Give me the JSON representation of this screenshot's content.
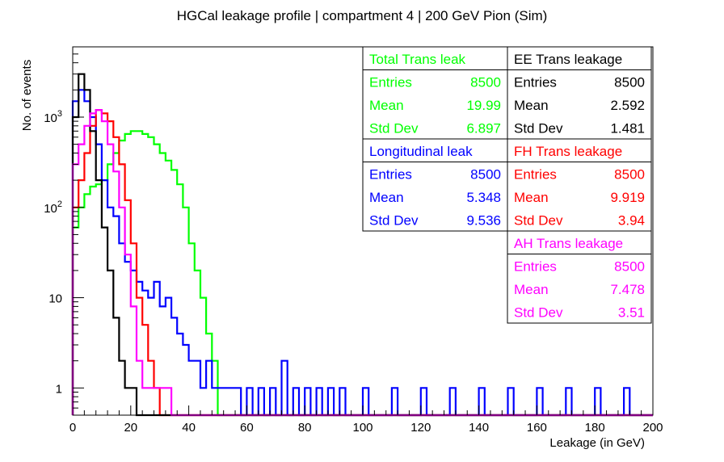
{
  "chart_data": {
    "type": "histogram",
    "title": "HGCal leakage profile | compartment 4 | 200 GeV Pion (Sim)",
    "xlabel": "Leakage (in GeV)",
    "ylabel": "No. of events",
    "xlim": [
      0,
      200
    ],
    "ylim": [
      0.5,
      6000
    ],
    "yscale": "log",
    "bin_width": 2,
    "x_ticks": [
      "0",
      "20",
      "40",
      "60",
      "80",
      "100",
      "120",
      "140",
      "160",
      "180",
      "200"
    ],
    "y_ticks": [
      {
        "value": 1,
        "label": "1"
      },
      {
        "value": 10,
        "label": "10"
      },
      {
        "value": 100,
        "label": "10",
        "exp": "2"
      },
      {
        "value": 1000,
        "label": "10",
        "exp": "3"
      }
    ],
    "series": [
      {
        "name": "Total Trans leak",
        "color": "#00ff00",
        "stats": {
          "entries": "8500",
          "mean": "19.99",
          "std": "6.897"
        },
        "bins": [
          [
            0,
            60
          ],
          [
            2,
            100
          ],
          [
            4,
            140
          ],
          [
            6,
            170
          ],
          [
            8,
            180
          ],
          [
            10,
            200
          ],
          [
            12,
            300
          ],
          [
            14,
            400
          ],
          [
            16,
            550
          ],
          [
            18,
            650
          ],
          [
            20,
            700
          ],
          [
            22,
            700
          ],
          [
            24,
            650
          ],
          [
            26,
            600
          ],
          [
            28,
            500
          ],
          [
            30,
            400
          ],
          [
            32,
            330
          ],
          [
            34,
            260
          ],
          [
            36,
            180
          ],
          [
            38,
            100
          ],
          [
            40,
            40
          ],
          [
            42,
            20
          ],
          [
            44,
            10
          ],
          [
            46,
            4
          ],
          [
            48,
            2
          ]
        ]
      },
      {
        "name": "Longitudinal leak",
        "color": "#0000ff",
        "stats": {
          "entries": "8500",
          "mean": "5.348",
          "std": "9.536"
        },
        "bins": [
          [
            0,
            1500
          ],
          [
            2,
            2000
          ],
          [
            4,
            1500
          ],
          [
            6,
            1000
          ],
          [
            8,
            500
          ],
          [
            10,
            200
          ],
          [
            12,
            100
          ],
          [
            14,
            80
          ],
          [
            16,
            40
          ],
          [
            18,
            25
          ],
          [
            20,
            20
          ],
          [
            22,
            15
          ],
          [
            24,
            12
          ],
          [
            26,
            10
          ],
          [
            28,
            15
          ],
          [
            30,
            8
          ],
          [
            32,
            10
          ],
          [
            34,
            6
          ],
          [
            36,
            4
          ],
          [
            38,
            3
          ],
          [
            40,
            2
          ],
          [
            42,
            2
          ],
          [
            44,
            1
          ],
          [
            46,
            2
          ],
          [
            48,
            1
          ],
          [
            50,
            1
          ],
          [
            52,
            1
          ],
          [
            54,
            1
          ],
          [
            56,
            1
          ],
          [
            60,
            1
          ],
          [
            64,
            1
          ],
          [
            68,
            1
          ],
          [
            72,
            2
          ],
          [
            76,
            1
          ],
          [
            80,
            1
          ],
          [
            84,
            1
          ],
          [
            88,
            1
          ],
          [
            92,
            1
          ],
          [
            100,
            1
          ],
          [
            110,
            1
          ],
          [
            120,
            1
          ],
          [
            130,
            1
          ],
          [
            140,
            1
          ],
          [
            150,
            1
          ],
          [
            160,
            1
          ],
          [
            170,
            1
          ],
          [
            180,
            1
          ],
          [
            190,
            1
          ]
        ]
      },
      {
        "name": "FH Trans leakage",
        "color": "#ff0000",
        "stats": {
          "entries": "8500",
          "mean": "9.919",
          "std": "3.94"
        },
        "bins": [
          [
            0,
            100
          ],
          [
            2,
            200
          ],
          [
            4,
            400
          ],
          [
            6,
            800
          ],
          [
            8,
            1200
          ],
          [
            10,
            1100
          ],
          [
            12,
            900
          ],
          [
            14,
            600
          ],
          [
            16,
            300
          ],
          [
            18,
            120
          ],
          [
            20,
            40
          ],
          [
            22,
            10
          ],
          [
            24,
            5
          ],
          [
            26,
            2
          ],
          [
            28,
            1
          ]
        ]
      },
      {
        "name": "EE Trans leakage",
        "color": "#000000",
        "stats": {
          "entries": "8500",
          "mean": "2.592",
          "std": "1.481"
        },
        "bins": [
          [
            0,
            1000
          ],
          [
            2,
            3000
          ],
          [
            4,
            2000
          ],
          [
            6,
            700
          ],
          [
            8,
            200
          ],
          [
            10,
            60
          ],
          [
            12,
            20
          ],
          [
            14,
            6
          ],
          [
            16,
            2
          ],
          [
            18,
            1
          ],
          [
            20,
            1
          ]
        ]
      },
      {
        "name": "AH Trans leakage",
        "color": "#ff00ff",
        "stats": {
          "entries": "8500",
          "mean": "7.478",
          "std": "3.51"
        },
        "bins": [
          [
            0,
            300
          ],
          [
            2,
            500
          ],
          [
            4,
            800
          ],
          [
            6,
            1100
          ],
          [
            8,
            1200
          ],
          [
            10,
            900
          ],
          [
            12,
            500
          ],
          [
            14,
            250
          ],
          [
            16,
            100
          ],
          [
            18,
            30
          ],
          [
            20,
            8
          ],
          [
            22,
            2
          ],
          [
            24,
            1
          ],
          [
            26,
            1
          ],
          [
            28,
            1
          ],
          [
            30,
            1
          ],
          [
            32,
            1
          ]
        ]
      }
    ],
    "stat_labels": {
      "entries": "Entries",
      "mean": "Mean",
      "std": "Std Dev"
    }
  }
}
